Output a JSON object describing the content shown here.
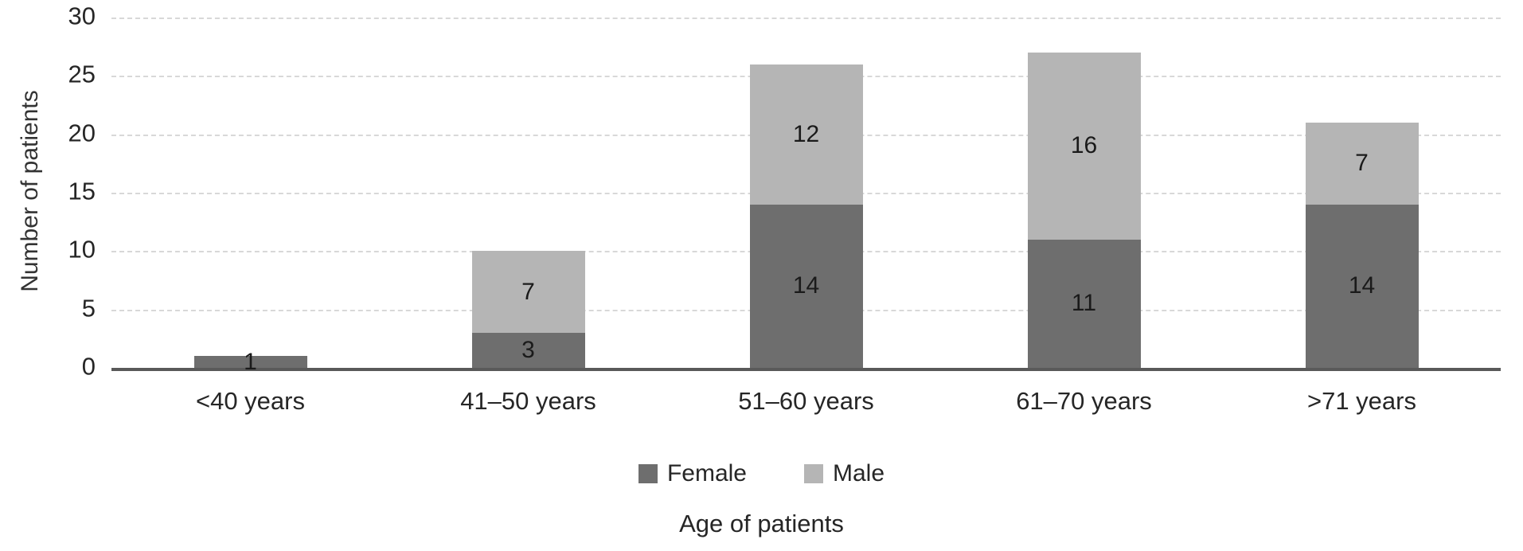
{
  "chart_data": {
    "type": "bar",
    "stacked": true,
    "title": "",
    "xlabel": "Age of patients",
    "ylabel": "Number of patients",
    "ylim": [
      0,
      30
    ],
    "yticks": [
      0,
      5,
      10,
      15,
      20,
      25,
      30
    ],
    "grid": true,
    "legend_position": "bottom",
    "categories": [
      "<40 years",
      "41–50 years",
      "51–60 years",
      "61–70 years",
      ">71 years"
    ],
    "series": [
      {
        "name": "Female",
        "color": "#6e6e6e",
        "values": [
          1,
          3,
          14,
          11,
          14
        ]
      },
      {
        "name": "Male",
        "color": "#b5b5b5",
        "values": [
          0,
          7,
          12,
          16,
          7
        ]
      }
    ],
    "totals": [
      1,
      10,
      26,
      27,
      21
    ]
  },
  "colors": {
    "female": "#6e6e6e",
    "male": "#b5b5b5",
    "axis": "#595959",
    "gridline": "#d8d8d8",
    "background": "#ffffff"
  }
}
